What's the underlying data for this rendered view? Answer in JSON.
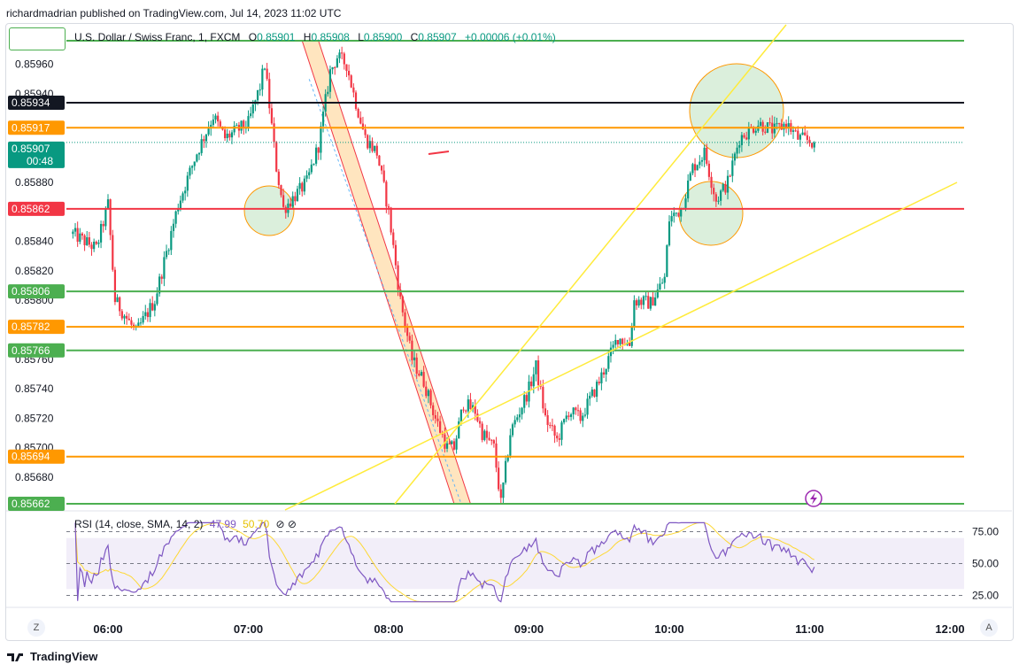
{
  "header": {
    "text": "richardmadrian published on TradingView.com, Jul 14, 2023 11:02 UTC"
  },
  "legend": {
    "symbol": "U.S. Dollar / Swiss Franc, 1, FXCM",
    "o_label": "O",
    "o": "0.85901",
    "h_label": "H",
    "h": "0.85908",
    "l_label": "L",
    "l": "0.85900",
    "c_label": "C",
    "c": "0.85907",
    "chg": "+0.00006 (+0.01%)"
  },
  "rsi_legend": {
    "title": "RSI (14, close, SMA, 14, 2)",
    "rsi": "47.99",
    "sma": "50.70",
    "icons": "⊘ ⊘"
  },
  "footer": {
    "brand": "TradingView",
    "z_button": "Z",
    "a_button": "A"
  },
  "colors": {
    "up": "#089981",
    "down": "#f23645",
    "green_line": "#4caf50",
    "orange_line": "#ff9800",
    "red_line": "#f23645",
    "black_line": "#131722",
    "trend": "#ffeb3b",
    "rsi": "#7e57c2",
    "rsi_sma": "#fdd835"
  },
  "chart_data": {
    "type": "candlestick",
    "title": "U.S. Dollar / Swiss Franc, 1, FXCM",
    "x_ticks": [
      "06:00",
      "07:00",
      "08:00",
      "09:00",
      "10:00",
      "11:00",
      "12:00"
    ],
    "y_ticks": [
      "0.85960",
      "0.85940",
      "0.85880",
      "0.85840",
      "0.85820",
      "0.85800",
      "0.85760",
      "0.85740",
      "0.85720",
      "0.85700",
      "0.85680"
    ],
    "ylim": [
      0.85662,
      0.85976
    ],
    "price_labels": [
      {
        "value": "0.85934",
        "kind": "black"
      },
      {
        "value": "0.85917",
        "kind": "orange"
      },
      {
        "value": "0.85907",
        "kind": "current",
        "timer": "00:48"
      },
      {
        "value": "0.85862",
        "kind": "red"
      },
      {
        "value": "0.85806",
        "kind": "green"
      },
      {
        "value": "0.85782",
        "kind": "orange"
      },
      {
        "value": "0.85766",
        "kind": "green"
      },
      {
        "value": "0.85694",
        "kind": "orange"
      },
      {
        "value": "0.85662",
        "kind": "green"
      }
    ],
    "hlines": [
      {
        "price": 0.85976,
        "kind": "green"
      },
      {
        "price": 0.85934,
        "kind": "black"
      },
      {
        "price": 0.85917,
        "kind": "orange"
      },
      {
        "price": 0.85862,
        "kind": "red"
      },
      {
        "price": 0.85806,
        "kind": "green"
      },
      {
        "price": 0.85782,
        "kind": "orange"
      },
      {
        "price": 0.85766,
        "kind": "green"
      },
      {
        "price": 0.85694,
        "kind": "orange"
      },
      {
        "price": 0.85662,
        "kind": "green"
      }
    ],
    "path": [
      [
        "05:45",
        0.85845
      ],
      [
        "05:55",
        0.85835
      ],
      [
        "06:00",
        0.85865
      ],
      [
        "06:03",
        0.858
      ],
      [
        "06:12",
        0.85778
      ],
      [
        "06:20",
        0.858
      ],
      [
        "06:30",
        0.85865
      ],
      [
        "06:38",
        0.859
      ],
      [
        "06:45",
        0.85925
      ],
      [
        "06:50",
        0.8591
      ],
      [
        "07:00",
        0.8592
      ],
      [
        "07:05",
        0.85945
      ],
      [
        "07:07",
        0.8596
      ],
      [
        "07:12",
        0.8589
      ],
      [
        "07:15",
        0.85862
      ],
      [
        "07:25",
        0.8588
      ],
      [
        "07:30",
        0.85905
      ],
      [
        "07:35",
        0.85955
      ],
      [
        "07:38",
        0.85965
      ],
      [
        "07:42",
        0.8596
      ],
      [
        "07:45",
        0.8594
      ],
      [
        "07:50",
        0.8591
      ],
      [
        "07:55",
        0.859
      ],
      [
        "08:00",
        0.8586
      ],
      [
        "08:05",
        0.858
      ],
      [
        "08:10",
        0.8576
      ],
      [
        "08:15",
        0.85745
      ],
      [
        "08:20",
        0.8572
      ],
      [
        "08:25",
        0.857
      ],
      [
        "08:28",
        0.857
      ],
      [
        "08:32",
        0.8573
      ],
      [
        "08:37",
        0.85725
      ],
      [
        "08:40",
        0.8571
      ],
      [
        "08:45",
        0.857
      ],
      [
        "08:48",
        0.85662
      ],
      [
        "08:52",
        0.8571
      ],
      [
        "09:00",
        0.8574
      ],
      [
        "09:03",
        0.85755
      ],
      [
        "09:07",
        0.8572
      ],
      [
        "09:12",
        0.85705
      ],
      [
        "09:17",
        0.85725
      ],
      [
        "09:22",
        0.8572
      ],
      [
        "09:30",
        0.85745
      ],
      [
        "09:38",
        0.85775
      ],
      [
        "09:43",
        0.8577
      ],
      [
        "09:45",
        0.858
      ],
      [
        "09:52",
        0.85798
      ],
      [
        "09:58",
        0.85815
      ],
      [
        "10:00",
        0.85855
      ],
      [
        "10:05",
        0.85862
      ],
      [
        "10:10",
        0.8589
      ],
      [
        "10:15",
        0.859
      ],
      [
        "10:20",
        0.85868
      ],
      [
        "10:25",
        0.8588
      ],
      [
        "10:30",
        0.8591
      ],
      [
        "10:38",
        0.8592
      ],
      [
        "10:45",
        0.85915
      ],
      [
        "10:50",
        0.8592
      ],
      [
        "10:55",
        0.8591
      ],
      [
        "11:00",
        0.85908
      ],
      [
        "11:02",
        0.85907
      ]
    ],
    "rsi": {
      "levels": [
        75,
        50,
        25
      ],
      "ylim": [
        17,
        83
      ],
      "last": 47.99,
      "sma_last": 50.7
    },
    "annotations": {
      "circles": [
        "07:05 @ 0.85865",
        "10:28 @ 0.85925",
        "10:15 @ 0.85862"
      ],
      "channel": "07:35 → 08:25 descending",
      "trendlines": [
        "from 08:20 @0.85660 to 11:00 above top",
        "from 07:30 @0.85660 to 12:00 @0.85885"
      ]
    }
  }
}
